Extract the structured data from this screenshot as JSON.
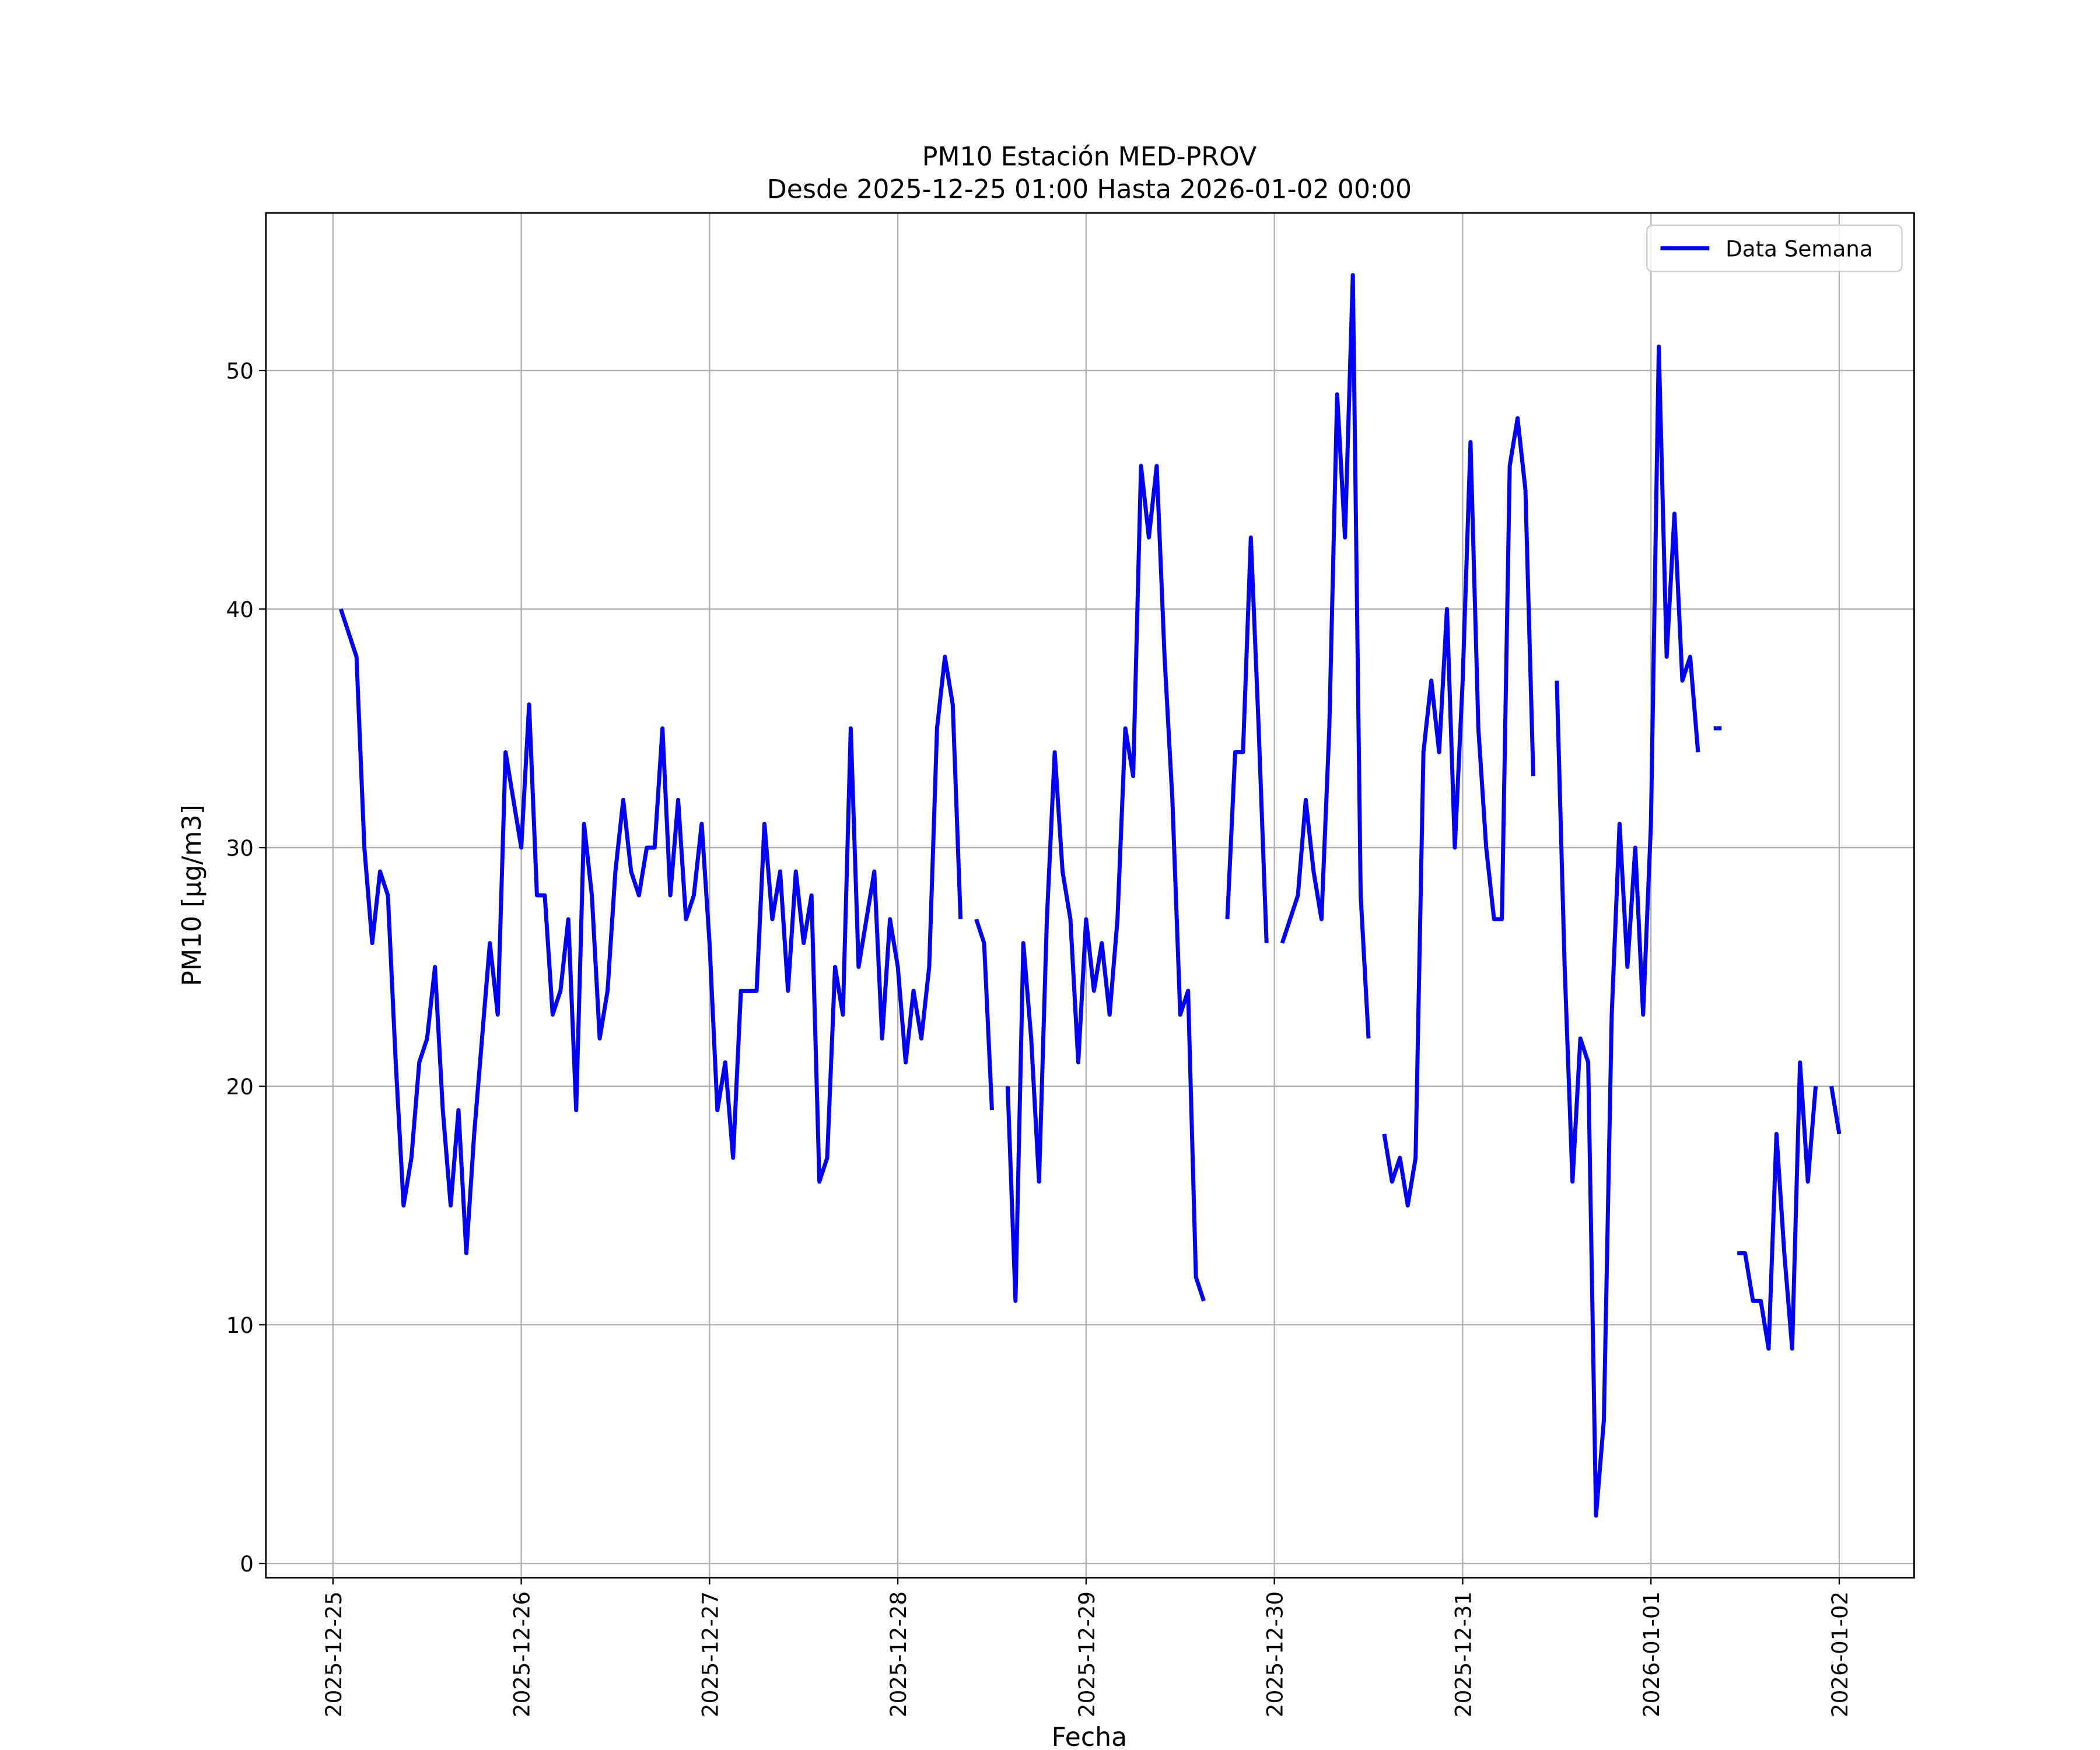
{
  "chart_data": {
    "type": "line",
    "title": "PM10 Estación MED-PROV",
    "subtitle": "Desde 2025-12-25 01:00 Hasta 2026-01-02 00:00",
    "x_label": "Fecha",
    "y_label": "PM10 [μg/m3]",
    "legend": "upper right",
    "grid": true,
    "x": [
      "2025-12-25 01:00",
      "2025-12-25 02:00",
      "2025-12-25 03:00",
      "2025-12-25 04:00",
      "2025-12-25 05:00",
      "2025-12-25 06:00",
      "2025-12-25 07:00",
      "2025-12-25 08:00",
      "2025-12-25 09:00",
      "2025-12-25 10:00",
      "2025-12-25 11:00",
      "2025-12-25 12:00",
      "2025-12-25 13:00",
      "2025-12-25 14:00",
      "2025-12-25 15:00",
      "2025-12-25 16:00",
      "2025-12-25 17:00",
      "2025-12-25 18:00",
      "2025-12-25 19:00",
      "2025-12-25 20:00",
      "2025-12-25 21:00",
      "2025-12-25 22:00",
      "2025-12-25 23:00",
      "2025-12-26 00:00",
      "2025-12-26 01:00",
      "2025-12-26 02:00",
      "2025-12-26 03:00",
      "2025-12-26 04:00",
      "2025-12-26 05:00",
      "2025-12-26 06:00",
      "2025-12-26 07:00",
      "2025-12-26 08:00",
      "2025-12-26 09:00",
      "2025-12-26 10:00",
      "2025-12-26 11:00",
      "2025-12-26 12:00",
      "2025-12-26 13:00",
      "2025-12-26 14:00",
      "2025-12-26 15:00",
      "2025-12-26 16:00",
      "2025-12-26 17:00",
      "2025-12-26 18:00",
      "2025-12-26 19:00",
      "2025-12-26 20:00",
      "2025-12-26 21:00",
      "2025-12-26 22:00",
      "2025-12-26 23:00",
      "2025-12-27 00:00",
      "2025-12-27 01:00",
      "2025-12-27 02:00",
      "2025-12-27 03:00",
      "2025-12-27 04:00",
      "2025-12-27 05:00",
      "2025-12-27 06:00",
      "2025-12-27 07:00",
      "2025-12-27 08:00",
      "2025-12-27 09:00",
      "2025-12-27 10:00",
      "2025-12-27 11:00",
      "2025-12-27 12:00",
      "2025-12-27 13:00",
      "2025-12-27 14:00",
      "2025-12-27 15:00",
      "2025-12-27 16:00",
      "2025-12-27 17:00",
      "2025-12-27 18:00",
      "2025-12-27 19:00",
      "2025-12-27 20:00",
      "2025-12-27 21:00",
      "2025-12-27 22:00",
      "2025-12-27 23:00",
      "2025-12-28 00:00",
      "2025-12-28 01:00",
      "2025-12-28 02:00",
      "2025-12-28 03:00",
      "2025-12-28 04:00",
      "2025-12-28 05:00",
      "2025-12-28 06:00",
      "2025-12-28 07:00",
      "2025-12-28 08:00",
      "2025-12-28 09:00",
      "2025-12-28 10:00",
      "2025-12-28 11:00",
      "2025-12-28 12:00",
      "2025-12-28 13:00",
      "2025-12-28 14:00",
      "2025-12-28 15:00",
      "2025-12-28 16:00",
      "2025-12-28 17:00",
      "2025-12-28 18:00",
      "2025-12-28 19:00",
      "2025-12-28 20:00",
      "2025-12-28 21:00",
      "2025-12-28 22:00",
      "2025-12-28 23:00",
      "2025-12-29 00:00",
      "2025-12-29 01:00",
      "2025-12-29 02:00",
      "2025-12-29 03:00",
      "2025-12-29 04:00",
      "2025-12-29 05:00",
      "2025-12-29 06:00",
      "2025-12-29 07:00",
      "2025-12-29 08:00",
      "2025-12-29 09:00",
      "2025-12-29 10:00",
      "2025-12-29 11:00",
      "2025-12-29 12:00",
      "2025-12-29 13:00",
      "2025-12-29 14:00",
      "2025-12-29 15:00",
      "2025-12-29 16:00",
      "2025-12-29 17:00",
      "2025-12-29 18:00",
      "2025-12-29 19:00",
      "2025-12-29 20:00",
      "2025-12-29 21:00",
      "2025-12-29 22:00",
      "2025-12-29 23:00",
      "2025-12-30 00:00",
      "2025-12-30 01:00",
      "2025-12-30 02:00",
      "2025-12-30 03:00",
      "2025-12-30 04:00",
      "2025-12-30 05:00",
      "2025-12-30 06:00",
      "2025-12-30 07:00",
      "2025-12-30 08:00",
      "2025-12-30 09:00",
      "2025-12-30 10:00",
      "2025-12-30 11:00",
      "2025-12-30 12:00",
      "2025-12-30 13:00",
      "2025-12-30 14:00",
      "2025-12-30 15:00",
      "2025-12-30 16:00",
      "2025-12-30 17:00",
      "2025-12-30 18:00",
      "2025-12-30 19:00",
      "2025-12-30 20:00",
      "2025-12-30 21:00",
      "2025-12-30 22:00",
      "2025-12-30 23:00",
      "2025-12-31 00:00",
      "2025-12-31 01:00",
      "2025-12-31 02:00",
      "2025-12-31 03:00",
      "2025-12-31 04:00",
      "2025-12-31 05:00",
      "2025-12-31 06:00",
      "2025-12-31 07:00",
      "2025-12-31 08:00",
      "2025-12-31 09:00",
      "2025-12-31 10:00",
      "2025-12-31 11:00",
      "2025-12-31 12:00",
      "2025-12-31 13:00",
      "2025-12-31 14:00",
      "2025-12-31 15:00",
      "2025-12-31 16:00",
      "2025-12-31 17:00",
      "2025-12-31 18:00",
      "2025-12-31 19:00",
      "2025-12-31 20:00",
      "2025-12-31 21:00",
      "2025-12-31 22:00",
      "2025-12-31 23:00",
      "2026-01-01 00:00",
      "2026-01-01 01:00",
      "2026-01-01 02:00",
      "2026-01-01 03:00",
      "2026-01-01 04:00",
      "2026-01-01 05:00",
      "2026-01-01 06:00",
      "2026-01-01 07:00",
      "2026-01-01 08:00",
      "2026-01-01 09:00",
      "2026-01-01 10:00",
      "2026-01-01 11:00",
      "2026-01-01 12:00",
      "2026-01-01 13:00",
      "2026-01-01 14:00",
      "2026-01-01 15:00",
      "2026-01-01 16:00",
      "2026-01-01 17:00",
      "2026-01-01 18:00",
      "2026-01-01 19:00",
      "2026-01-01 20:00",
      "2026-01-01 21:00",
      "2026-01-01 22:00",
      "2026-01-01 23:00",
      "2026-01-02 00:00"
    ],
    "series": [
      {
        "name": "Data Semana",
        "color": "#0000ff",
        "values": [
          40,
          39,
          38,
          30,
          26,
          29,
          28,
          21,
          15,
          17,
          21,
          22,
          25,
          19,
          15,
          19,
          13,
          18,
          22,
          26,
          23,
          34,
          32,
          30,
          36,
          28,
          28,
          23,
          24,
          27,
          19,
          31,
          28,
          22,
          24,
          29,
          32,
          29,
          28,
          30,
          30,
          35,
          28,
          32,
          27,
          28,
          31,
          26,
          19,
          21,
          17,
          24,
          24,
          24,
          31,
          27,
          29,
          24,
          29,
          26,
          28,
          16,
          17,
          25,
          23,
          35,
          25,
          27,
          29,
          22,
          27,
          25,
          21,
          24,
          22,
          25,
          35,
          38,
          36,
          27,
          null,
          27,
          26,
          19,
          null,
          20,
          11,
          26,
          22,
          16,
          27,
          34,
          29,
          27,
          21,
          27,
          24,
          26,
          23,
          27,
          35,
          33,
          46,
          43,
          46,
          38,
          32,
          23,
          24,
          12,
          11,
          null,
          null,
          27,
          34,
          34,
          43,
          35,
          26,
          null,
          26,
          27,
          28,
          32,
          29,
          27,
          35,
          49,
          43,
          54,
          28,
          22,
          null,
          18,
          16,
          17,
          15,
          17,
          34,
          37,
          34,
          40,
          30,
          37,
          47,
          35,
          30,
          27,
          27,
          46,
          48,
          45,
          33,
          null,
          null,
          37,
          25,
          16,
          22,
          21,
          2,
          6,
          23,
          31,
          25,
          30,
          23,
          31,
          51,
          38,
          44,
          37,
          38,
          34,
          null,
          35,
          35,
          null,
          13,
          13,
          11,
          11,
          9,
          18,
          13,
          9,
          21,
          16,
          20,
          null,
          20,
          18
        ]
      }
    ],
    "xlim": [
      "2025-12-24 15:27",
      "2026-01-02 09:33"
    ],
    "xticks": [
      "2025-12-25",
      "2025-12-26",
      "2025-12-27",
      "2025-12-28",
      "2025-12-29",
      "2025-12-30",
      "2025-12-31",
      "2026-01-01",
      "2026-01-02"
    ],
    "ylim": [
      -0.6,
      56.6
    ],
    "yticks": [
      0,
      10,
      20,
      30,
      40,
      50
    ]
  }
}
